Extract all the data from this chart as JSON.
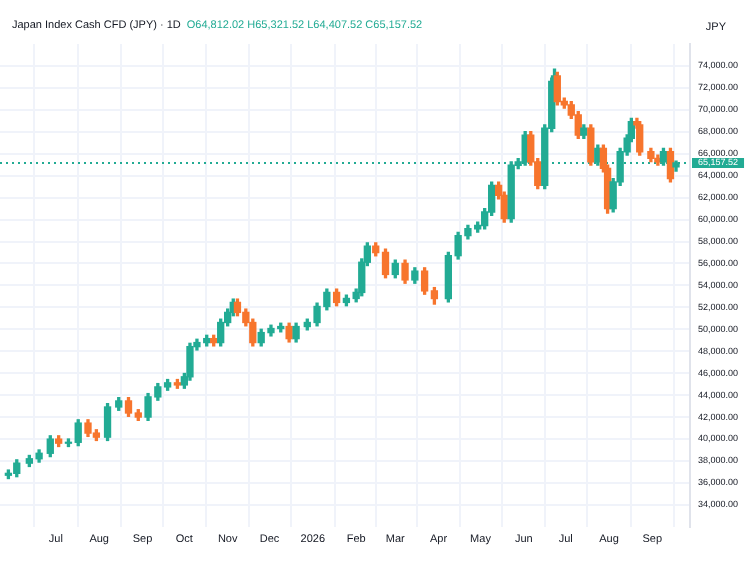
{
  "chart_data": {
    "type": "candlestick",
    "title": "Japan Index Cash CFD (JPY) · 1D",
    "annotations": [
      "O64,812.02 H65,321.52 L64,407.52 C65,157.52"
    ],
    "ylabel": "JPY",
    "x": [
      "2025-05-28",
      "2025-06-03",
      "2025-06-12",
      "2025-06-19",
      "2025-06-27",
      "2025-07-03",
      "2025-07-10",
      "2025-07-17",
      "2025-07-24",
      "2025-07-30",
      "2025-08-07",
      "2025-08-15",
      "2025-08-22",
      "2025-08-29",
      "2025-09-05",
      "2025-09-12",
      "2025-09-19",
      "2025-09-26",
      "2025-10-01",
      "2025-10-05",
      "2025-10-10",
      "2025-10-17",
      "2025-10-22",
      "2025-10-27",
      "2025-11-01",
      "2025-11-05",
      "2025-11-08",
      "2025-11-14",
      "2025-11-19",
      "2025-11-25",
      "2025-12-02",
      "2025-12-09",
      "2025-12-15",
      "2025-12-20",
      "2025-12-28",
      "2026-01-04",
      "2026-01-11",
      "2026-01-18",
      "2026-01-25",
      "2026-02-01",
      "2026-02-05",
      "2026-02-09",
      "2026-02-15",
      "2026-02-22",
      "2026-03-01",
      "2026-03-08",
      "2026-03-15",
      "2026-03-22",
      "2026-03-29",
      "2026-04-08",
      "2026-04-15",
      "2026-04-22",
      "2026-04-29",
      "2026-05-04",
      "2026-05-09",
      "2026-05-14",
      "2026-05-18",
      "2026-05-23",
      "2026-05-28",
      "2026-06-02",
      "2026-06-06",
      "2026-06-11",
      "2026-06-16",
      "2026-06-21",
      "2026-06-23",
      "2026-06-25",
      "2026-06-30",
      "2026-07-05",
      "2026-07-10",
      "2026-07-14",
      "2026-07-19",
      "2026-07-24",
      "2026-07-28",
      "2026-07-31",
      "2026-08-04",
      "2026-08-09",
      "2026-08-14",
      "2026-08-17",
      "2026-08-21",
      "2026-08-23",
      "2026-08-31",
      "2026-09-05",
      "2026-09-09",
      "2026-09-14",
      "2026-09-18"
    ],
    "ohlc": [
      [
        36700,
        37170,
        36400,
        36870
      ],
      [
        36870,
        38100,
        36570,
        37800
      ],
      [
        37800,
        38500,
        37500,
        38200
      ],
      [
        38200,
        39000,
        37900,
        38700
      ],
      [
        38700,
        40290,
        38400,
        39990
      ],
      [
        39990,
        40290,
        39320,
        39620
      ],
      [
        39620,
        40000,
        39320,
        39700
      ],
      [
        39700,
        41750,
        39400,
        41450
      ],
      [
        41450,
        41750,
        40240,
        40540
      ],
      [
        40540,
        40840,
        39870,
        40170
      ],
      [
        40170,
        43220,
        39870,
        42920
      ],
      [
        42920,
        43770,
        42620,
        43470
      ],
      [
        43470,
        43770,
        42070,
        42370
      ],
      [
        42370,
        42670,
        41700,
        42000
      ],
      [
        42000,
        44140,
        41700,
        43840
      ],
      [
        43840,
        45050,
        43540,
        44750
      ],
      [
        44750,
        45420,
        44450,
        45120
      ],
      [
        45120,
        45420,
        44630,
        44930
      ],
      [
        44930,
        45970,
        44630,
        45670
      ],
      [
        45670,
        48720,
        45370,
        48420
      ],
      [
        48420,
        49090,
        48120,
        48790
      ],
      [
        48790,
        49450,
        48490,
        49150
      ],
      [
        49150,
        49450,
        48490,
        48790
      ],
      [
        48790,
        50920,
        48490,
        50620
      ],
      [
        50620,
        51840,
        50320,
        51540
      ],
      [
        51540,
        52750,
        51240,
        52450
      ],
      [
        52450,
        52750,
        51240,
        51540
      ],
      [
        51540,
        51840,
        50320,
        50620
      ],
      [
        50620,
        50920,
        48490,
        48790
      ],
      [
        48790,
        50000,
        48490,
        49700
      ],
      [
        49700,
        50370,
        49400,
        50070
      ],
      [
        50070,
        50550,
        49770,
        50250
      ],
      [
        50250,
        50550,
        48850,
        49150
      ],
      [
        49150,
        50550,
        48850,
        50250
      ],
      [
        50250,
        50920,
        49950,
        50620
      ],
      [
        50620,
        52380,
        50320,
        52080
      ],
      [
        52080,
        53660,
        51780,
        53360
      ],
      [
        53360,
        53660,
        52150,
        52450
      ],
      [
        52450,
        53110,
        52150,
        52810
      ],
      [
        52810,
        53660,
        52510,
        53360
      ],
      [
        53360,
        56410,
        53060,
        56110
      ],
      [
        56110,
        57870,
        55810,
        57570
      ],
      [
        57570,
        57870,
        56700,
        57000
      ],
      [
        57000,
        57300,
        54700,
        55000
      ],
      [
        55000,
        56300,
        54700,
        56000
      ],
      [
        56000,
        56300,
        54200,
        54500
      ],
      [
        54500,
        55600,
        54200,
        55300
      ],
      [
        55300,
        55600,
        53200,
        53500
      ],
      [
        53500,
        53800,
        52300,
        52800
      ],
      [
        52800,
        57010,
        52500,
        56710
      ],
      [
        56710,
        58840,
        56410,
        58540
      ],
      [
        58540,
        59460,
        58240,
        59160
      ],
      [
        59160,
        59760,
        58860,
        59460
      ],
      [
        59460,
        60990,
        59160,
        60690
      ],
      [
        60690,
        63420,
        60390,
        63120
      ],
      [
        63120,
        63420,
        61900,
        62200
      ],
      [
        62200,
        62500,
        59780,
        60080
      ],
      [
        60080,
        65250,
        59780,
        64950
      ],
      [
        64950,
        65560,
        64650,
        65260
      ],
      [
        65260,
        68000,
        64960,
        67700
      ],
      [
        67700,
        68000,
        64960,
        65260
      ],
      [
        65260,
        65560,
        62820,
        63120
      ],
      [
        63120,
        68620,
        62820,
        68320
      ],
      [
        68320,
        72890,
        68020,
        72590
      ],
      [
        72590,
        73700,
        72290,
        73100
      ],
      [
        73100,
        73400,
        70460,
        70760
      ],
      [
        70760,
        71060,
        70150,
        70450
      ],
      [
        70450,
        70750,
        69230,
        69530
      ],
      [
        69530,
        69830,
        67400,
        67700
      ],
      [
        67700,
        68620,
        67400,
        68320
      ],
      [
        68320,
        68620,
        64960,
        65260
      ],
      [
        65260,
        66790,
        64960,
        66490
      ],
      [
        66490,
        66790,
        64360,
        64660
      ],
      [
        64660,
        64960,
        60600,
        61000
      ],
      [
        61000,
        63730,
        60700,
        63430
      ],
      [
        63430,
        66480,
        63130,
        66180
      ],
      [
        66180,
        67710,
        65880,
        67410
      ],
      [
        67410,
        69230,
        67110,
        68930
      ],
      [
        68930,
        69230,
        68330,
        68630
      ],
      [
        68630,
        68930,
        65880,
        66180
      ],
      [
        66180,
        66480,
        65280,
        65580
      ],
      [
        65580,
        65880,
        64960,
        65260
      ],
      [
        65260,
        66480,
        64960,
        66180
      ],
      [
        66180,
        66480,
        63440,
        63740
      ],
      [
        64812.02,
        65321.52,
        64407.52,
        65157.52
      ]
    ],
    "colors": [
      "#22ab94",
      "#22ab94",
      "#22ab94",
      "#22ab94",
      "#22ab94",
      "#f7752d",
      "#22ab94",
      "#22ab94",
      "#f7752d",
      "#f7752d",
      "#22ab94",
      "#22ab94",
      "#f7752d",
      "#f7752d",
      "#22ab94",
      "#22ab94",
      "#22ab94",
      "#f7752d",
      "#22ab94",
      "#22ab94",
      "#22ab94",
      "#22ab94",
      "#f7752d",
      "#22ab94",
      "#22ab94",
      "#22ab94",
      "#f7752d",
      "#f7752d",
      "#f7752d",
      "#22ab94",
      "#22ab94",
      "#22ab94",
      "#f7752d",
      "#22ab94",
      "#22ab94",
      "#22ab94",
      "#22ab94",
      "#f7752d",
      "#22ab94",
      "#22ab94",
      "#22ab94",
      "#22ab94",
      "#f7752d",
      "#f7752d",
      "#22ab94",
      "#f7752d",
      "#22ab94",
      "#f7752d",
      "#f7752d",
      "#22ab94",
      "#22ab94",
      "#22ab94",
      "#22ab94",
      "#22ab94",
      "#22ab94",
      "#f7752d",
      "#f7752d",
      "#22ab94",
      "#22ab94",
      "#22ab94",
      "#f7752d",
      "#f7752d",
      "#22ab94",
      "#22ab94",
      "#22ab94",
      "#f7752d",
      "#f7752d",
      "#f7752d",
      "#f7752d",
      "#22ab94",
      "#f7752d",
      "#22ab94",
      "#f7752d",
      "#f7752d",
      "#22ab94",
      "#22ab94",
      "#22ab94",
      "#22ab94",
      "#f7752d",
      "#f7752d",
      "#f7752d",
      "#f7752d",
      "#22ab94",
      "#f7752d",
      "#22ab94"
    ],
    "xlim": [
      "2025-05-22",
      "2026-09-28"
    ],
    "xticks": [
      {
        "value": "2025-07-01",
        "label": "Jul"
      },
      {
        "value": "2025-08-01",
        "label": "Aug"
      },
      {
        "value": "2025-09-01",
        "label": "Sep"
      },
      {
        "value": "2025-10-01",
        "label": "Oct"
      },
      {
        "value": "2025-11-01",
        "label": "Nov"
      },
      {
        "value": "2025-12-01",
        "label": "Dec"
      },
      {
        "value": "2026-01-01",
        "label": "2026"
      },
      {
        "value": "2026-02-01",
        "label": "Feb"
      },
      {
        "value": "2026-03-01",
        "label": "Mar"
      },
      {
        "value": "2026-04-01",
        "label": "Apr"
      },
      {
        "value": "2026-05-01",
        "label": "May"
      },
      {
        "value": "2026-06-01",
        "label": "Jun"
      },
      {
        "value": "2026-07-01",
        "label": "Jul"
      },
      {
        "value": "2026-08-01",
        "label": "Aug"
      },
      {
        "value": "2026-09-01",
        "label": "Sep"
      }
    ],
    "ylim": [
      32000,
      76000
    ],
    "yticks": [
      {
        "value": 34000,
        "label": "34,000.00"
      },
      {
        "value": 36000,
        "label": "36,000.00"
      },
      {
        "value": 38000,
        "label": "38,000.00"
      },
      {
        "value": 40000,
        "label": "40,000.00"
      },
      {
        "value": 42000,
        "label": "42,000.00"
      },
      {
        "value": 44000,
        "label": "44,000.00"
      },
      {
        "value": 46000,
        "label": "46,000.00"
      },
      {
        "value": 48000,
        "label": "48,000.00"
      },
      {
        "value": 50000,
        "label": "50,000.00"
      },
      {
        "value": 52000,
        "label": "52,000.00"
      },
      {
        "value": 54000,
        "label": "54,000.00"
      },
      {
        "value": 56000,
        "label": "56,000.00"
      },
      {
        "value": 58000,
        "label": "58,000.00"
      },
      {
        "value": 60000,
        "label": "60,000.00"
      },
      {
        "value": 62000,
        "label": "62,000.00"
      },
      {
        "value": 64000,
        "label": "64,000.00"
      },
      {
        "value": 66000,
        "label": "66,000.00"
      },
      {
        "value": 68000,
        "label": "68,000.00"
      },
      {
        "value": 70000,
        "label": "70,000.00"
      },
      {
        "value": 72000,
        "label": "72,000.00"
      },
      {
        "value": 74000,
        "label": "74,000.00"
      }
    ],
    "ref_lines": [
      {
        "axis": "y",
        "value": 65157.52,
        "label": "65,157.52",
        "color": "#22ab94",
        "line_style": "dotted"
      }
    ],
    "grid": true,
    "legend": false
  }
}
